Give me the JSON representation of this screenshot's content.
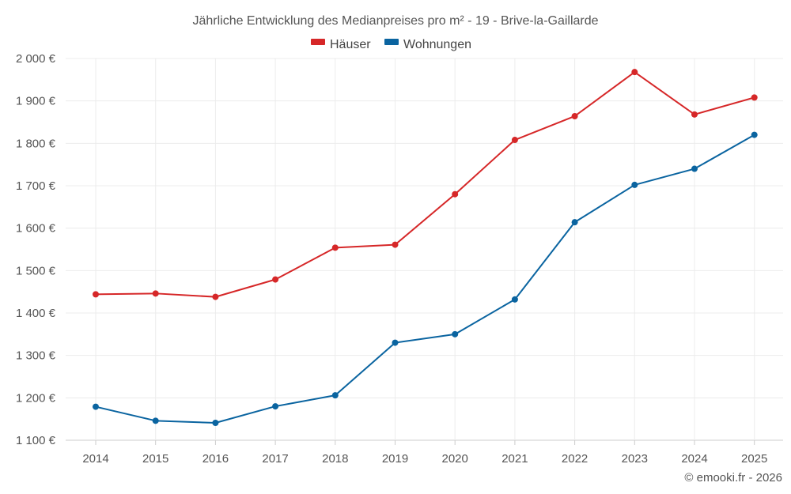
{
  "chart_data": {
    "type": "line",
    "title": "Jährliche Entwicklung des Medianpreises pro m² - 19 - Brive-la-Gaillarde",
    "categories": [
      "2014",
      "2015",
      "2016",
      "2017",
      "2018",
      "2019",
      "2020",
      "2021",
      "2022",
      "2023",
      "2024",
      "2025"
    ],
    "series": [
      {
        "name": "Häuser",
        "color": "#d62728",
        "values": [
          1444,
          1446,
          1438,
          1479,
          1554,
          1561,
          1680,
          1808,
          1864,
          1968,
          1868,
          1908
        ]
      },
      {
        "name": "Wohnungen",
        "color": "#0a64a0",
        "values": [
          1179,
          1146,
          1141,
          1180,
          1206,
          1330,
          1350,
          1432,
          1614,
          1702,
          1740,
          1820
        ]
      }
    ],
    "ylim": [
      1100,
      2000
    ],
    "yticks": [
      1100,
      1200,
      1300,
      1400,
      1500,
      1600,
      1700,
      1800,
      1900,
      2000
    ],
    "ytick_labels": [
      "1 100 €",
      "1 200 €",
      "1 300 €",
      "1 400 €",
      "1 500 €",
      "1 600 €",
      "1 700 €",
      "1 800 €",
      "1 900 €",
      "2 000 €"
    ],
    "xlabel": "",
    "ylabel": "",
    "grid": true,
    "legend_position": "top-center"
  },
  "credit": "© emooki.fr - 2026"
}
